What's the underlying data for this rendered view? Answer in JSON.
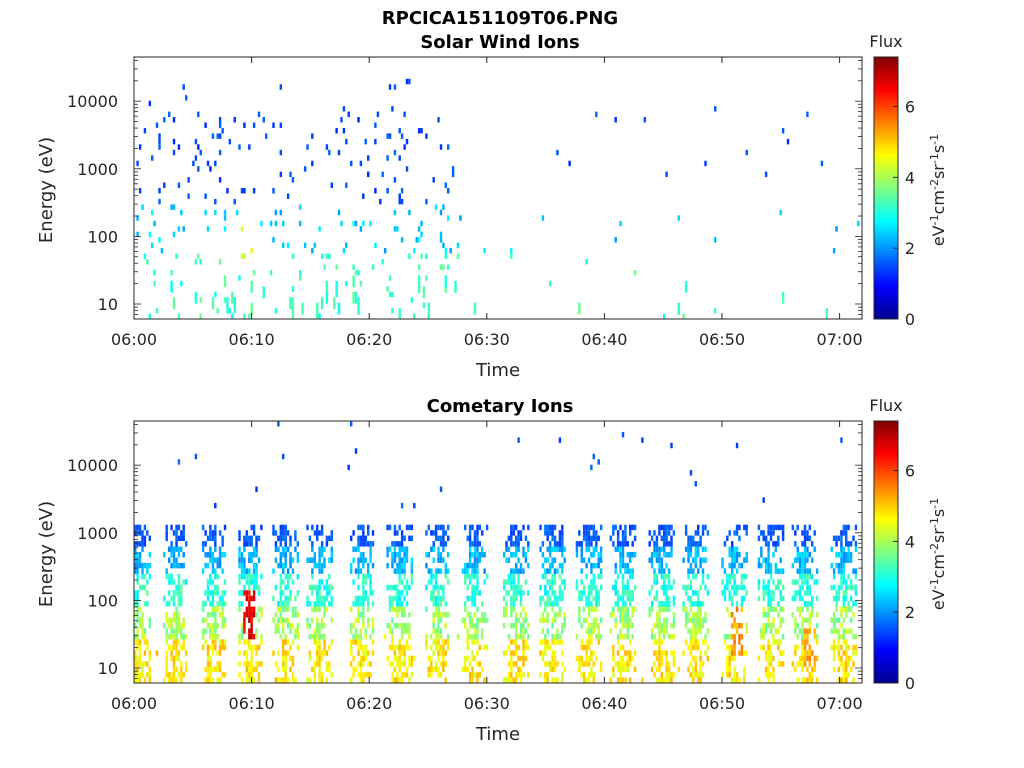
{
  "figure": {
    "title": "RPCICA151109T06.PNG"
  },
  "colormap": [
    "#00008f",
    "#0000ff",
    "#0080ff",
    "#00ffff",
    "#80ff80",
    "#ffff00",
    "#ff8000",
    "#ff0000",
    "#800000"
  ],
  "chart_data": [
    {
      "type": "heatmap",
      "title": "Solar Wind Ions",
      "xlabel": "Time",
      "ylabel": "Energy (eV)",
      "x_range": [
        "06:00",
        "07:02"
      ],
      "x_ticks": [
        "06:00",
        "06:10",
        "06:20",
        "06:30",
        "06:40",
        "06:50",
        "07:00"
      ],
      "y_scale": "log",
      "y_range": [
        6,
        45000
      ],
      "y_ticks": [
        "10",
        "100",
        "1000",
        "10000"
      ],
      "colorbar": {
        "title": "Flux",
        "label": "eV-1cm-2sr-1s-1",
        "ticks": [
          "0",
          "2",
          "4",
          "6"
        ],
        "range": [
          0,
          7.4
        ]
      },
      "activity": [
        {
          "from": 0,
          "to": 27.8,
          "density": 0.5
        },
        {
          "from": 27.8,
          "to": 62,
          "density": 0.05
        }
      ],
      "enhancements": [
        {
          "time": 9.8,
          "energy_low": 40,
          "energy_high": 150,
          "flux": 4.6
        }
      ]
    },
    {
      "type": "heatmap",
      "title": "Cometary Ions",
      "xlabel": "Time",
      "ylabel": "Energy (eV)",
      "x_range": [
        "06:00",
        "07:02"
      ],
      "x_ticks": [
        "06:00",
        "06:10",
        "06:20",
        "06:30",
        "06:40",
        "06:50",
        "07:00"
      ],
      "y_scale": "log",
      "y_range": [
        6,
        45000
      ],
      "y_ticks": [
        "10",
        "100",
        "1000",
        "10000"
      ],
      "colorbar": {
        "title": "Flux",
        "label": "eV-1cm-2sr-1s-1",
        "ticks": [
          "0",
          "2",
          "4",
          "6"
        ],
        "range": [
          0,
          7.4
        ]
      },
      "bursts": [
        0.3,
        3.5,
        6.8,
        9.9,
        12.9,
        15.8,
        19.4,
        22.6,
        25.8,
        29,
        32.5,
        35.6,
        38.8,
        41.7,
        45,
        47.8,
        51.1,
        54.2,
        57.2,
        60.4
      ],
      "peaks": [
        {
          "time": 9.9,
          "energy": 60,
          "flux": 7.0
        },
        {
          "time": 51.3,
          "energy": 35,
          "flux": 5.8
        },
        {
          "time": 57.6,
          "energy": 18,
          "flux": 5.6
        }
      ]
    }
  ]
}
